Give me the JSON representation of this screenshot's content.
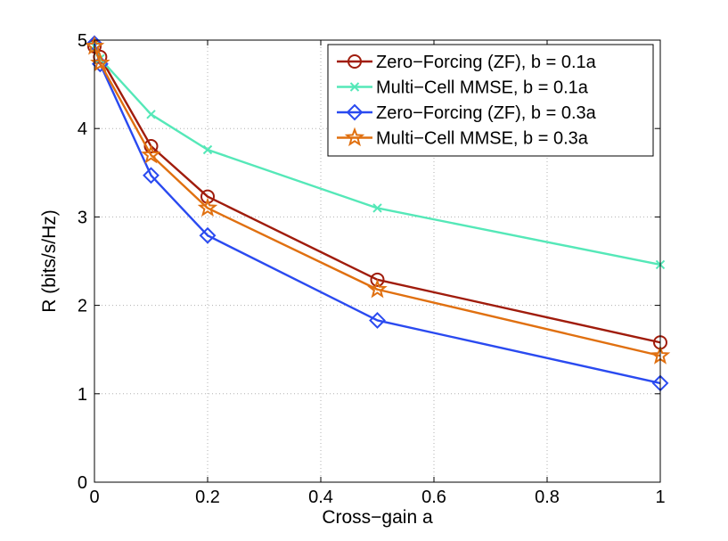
{
  "chart_data": {
    "type": "line",
    "title": "",
    "xlabel": "Cross−gain a",
    "ylabel": "R (bits/s/Hz)",
    "xlim": [
      0,
      1
    ],
    "ylim": [
      0,
      5
    ],
    "xticks": [
      0,
      0.2,
      0.4,
      0.6,
      0.8,
      1
    ],
    "xtick_labels": [
      "0",
      "0.2",
      "0.4",
      "0.6",
      "0.8",
      "1"
    ],
    "yticks": [
      0,
      1,
      2,
      3,
      4,
      5
    ],
    "ytick_labels": [
      "0",
      "1",
      "2",
      "3",
      "4",
      "5"
    ],
    "grid": true,
    "legend_position": "top-right",
    "x": [
      0,
      0.01,
      0.1,
      0.2,
      0.5,
      1
    ],
    "series": [
      {
        "name": "Zero−Forcing (ZF), b = 0.1a",
        "values": [
          4.93,
          4.81,
          3.8,
          3.23,
          2.29,
          1.58
        ],
        "color": "#a01c0c",
        "marker": "circle"
      },
      {
        "name": "Multi−Cell MMSE, b = 0.1a",
        "values": [
          4.93,
          4.79,
          4.16,
          3.76,
          3.1,
          2.46
        ],
        "color": "#55e8b8",
        "marker": "x"
      },
      {
        "name": "Zero−Forcing (ZF), b = 0.3a",
        "values": [
          4.96,
          4.73,
          3.47,
          2.79,
          1.83,
          1.12
        ],
        "color": "#2a4af0",
        "marker": "diamond"
      },
      {
        "name": "Multi−Cell MMSE, b = 0.3a",
        "values": [
          4.93,
          4.74,
          3.7,
          3.1,
          2.18,
          1.43
        ],
        "color": "#e07010",
        "marker": "star"
      }
    ]
  }
}
